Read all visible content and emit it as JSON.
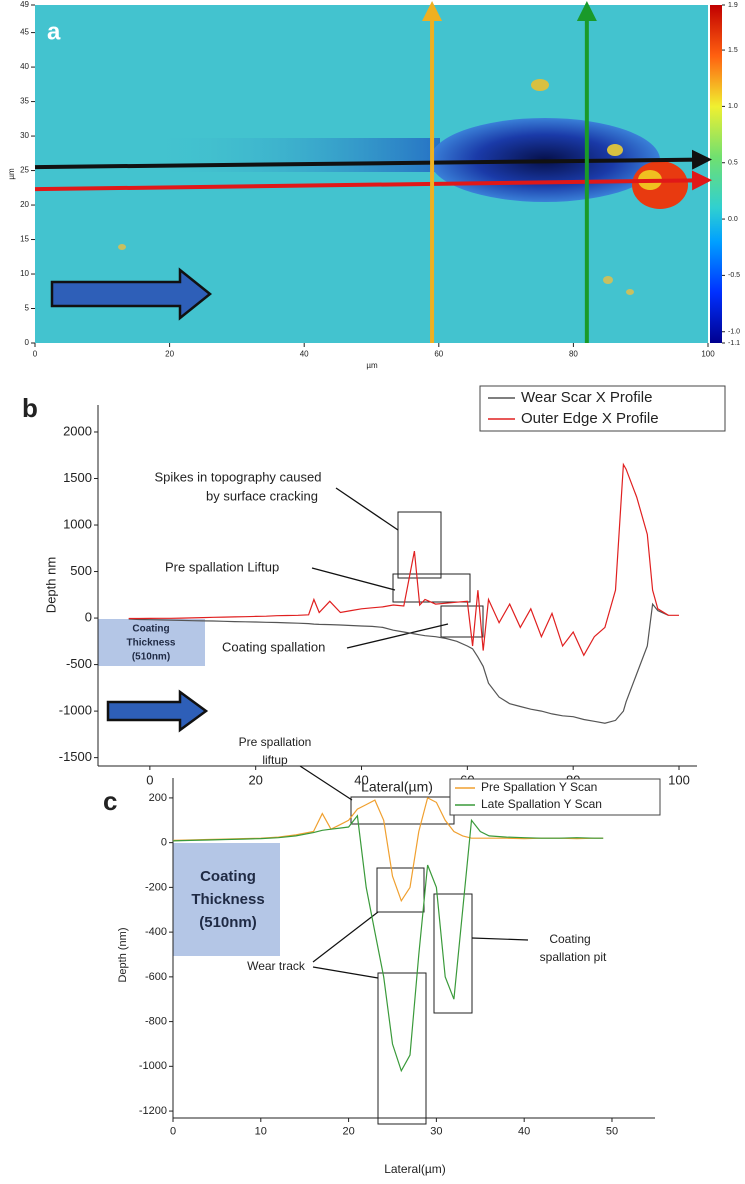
{
  "chart_data": [
    {
      "type": "heatmap",
      "label": "a",
      "xlabel": "µm",
      "ylabel": "µm",
      "xlim": [
        0,
        100
      ],
      "xticks": [
        0,
        20,
        40,
        60,
        80,
        100
      ],
      "ylim": [
        0,
        49
      ],
      "yticks": [
        0,
        5,
        10,
        15,
        20,
        25,
        30,
        35,
        40,
        45,
        49
      ],
      "colorbar": {
        "zlim": [
          -1.1,
          1.9
        ],
        "ticks": [
          1.9,
          1.5,
          {
            "value": 1,
            "label": "1.0"
          },
          0.5,
          {
            "value": 0,
            "label": "0.0"
          },
          -0.5,
          {
            "value": -1,
            "label": "-1.0"
          },
          -1.1
        ]
      },
      "arrows": [
        {
          "color": "#111111",
          "x": [
            0,
            100
          ],
          "y": [
            25.5,
            26.6
          ]
        },
        {
          "color": "#e01818",
          "x": [
            0,
            100
          ],
          "y": [
            22.3,
            23.6
          ]
        },
        {
          "color": "#f0b020",
          "x": [
            59,
            59
          ],
          "y": [
            0,
            49
          ]
        },
        {
          "color": "#1a9a2a",
          "x": [
            82,
            82
          ],
          "y": [
            0,
            49
          ]
        }
      ]
    },
    {
      "type": "line",
      "label": "b",
      "xlabel": "Lateral(µm)",
      "ylabel": "Depth nm",
      "xlim": [
        -9.8,
        103.4
      ],
      "xticks": [
        0,
        20,
        40,
        60,
        80,
        100
      ],
      "ylim": [
        -1590,
        2290
      ],
      "yticks": [
        -1500,
        -1000,
        -500,
        0,
        500,
        1000,
        1500,
        2000
      ],
      "x": [
        -4,
        -2,
        0,
        2,
        4,
        6,
        8,
        10,
        12,
        14,
        16,
        18,
        20,
        22,
        24,
        26,
        28,
        30,
        31,
        32,
        34,
        36,
        38,
        40,
        42,
        44,
        46,
        48,
        50,
        51,
        52,
        54,
        56,
        58,
        60,
        61,
        62,
        63,
        64,
        66,
        68,
        70,
        72,
        74,
        76,
        78,
        80,
        82,
        84,
        86,
        88,
        89.5,
        90,
        92,
        94,
        95,
        96,
        98,
        100
      ],
      "series": [
        {
          "name": "Wear Scar X Profile",
          "color": "#555555",
          "values": [
            -10,
            -15,
            -18,
            -20,
            -22,
            -25,
            -28,
            -30,
            -32,
            -35,
            -38,
            -40,
            -42,
            -45,
            -48,
            -52,
            -55,
            -60,
            -65,
            -68,
            -70,
            -75,
            -80,
            -85,
            -90,
            -100,
            -130,
            -150,
            -170,
            -180,
            -190,
            -200,
            -220,
            -250,
            -300,
            -330,
            -420,
            -520,
            -700,
            -850,
            -920,
            -950,
            -980,
            -1000,
            -1030,
            -1050,
            -1060,
            -1090,
            -1110,
            -1130,
            -1100,
            -1000,
            -900,
            -600,
            -300,
            150,
            80,
            30,
            null
          ]
        },
        {
          "name": "Outer Edge X Profile",
          "color": "#e02020",
          "values": [
            -5,
            -5,
            -4,
            -3,
            -2,
            0,
            2,
            5,
            8,
            10,
            12,
            15,
            18,
            20,
            25,
            28,
            30,
            35,
            200,
            60,
            180,
            60,
            80,
            100,
            110,
            120,
            140,
            130,
            720,
            140,
            200,
            150,
            160,
            170,
            180,
            -300,
            300,
            -350,
            200,
            -50,
            150,
            -100,
            100,
            -200,
            50,
            -300,
            -150,
            -400,
            -200,
            -100,
            300,
            1650,
            1600,
            1300,
            900,
            300,
            100,
            30,
            30
          ]
        }
      ],
      "legend": "upper right",
      "annotations": [
        {
          "lines": [
            "Spikes in topography caused",
            "by surface cracking"
          ]
        },
        {
          "lines": [
            "Pre spallation Liftup"
          ]
        },
        {
          "lines": [
            "Coating spallation"
          ]
        },
        {
          "lines": [
            "Coating",
            "Thickness",
            "(510nm)"
          ]
        }
      ]
    },
    {
      "type": "line",
      "label": "c",
      "xlabel": "Lateral(µm)",
      "ylabel": "Depth (nm)",
      "xlim": [
        0,
        54.9
      ],
      "xticks": [
        0,
        10,
        20,
        30,
        40,
        50
      ],
      "ylim": [
        -1231,
        289
      ],
      "yticks": [
        -1200,
        -1000,
        -800,
        -600,
        -400,
        -200,
        0,
        200
      ],
      "x": [
        0,
        2,
        4,
        6,
        8,
        10,
        12,
        14,
        16,
        17,
        18,
        19,
        20,
        21,
        22,
        23,
        24,
        25,
        26,
        27,
        28,
        29,
        30,
        31,
        32,
        33,
        34,
        35,
        36,
        38,
        40,
        42,
        44,
        46,
        48,
        49
      ],
      "series": [
        {
          "name": "Pre Spallation Y Scan",
          "color": "#f0a030",
          "values": [
            10,
            12,
            14,
            16,
            18,
            20,
            25,
            35,
            50,
            130,
            60,
            80,
            100,
            150,
            170,
            190,
            100,
            -150,
            -260,
            -200,
            50,
            200,
            180,
            100,
            50,
            30,
            20,
            20,
            20,
            20,
            18,
            20,
            20,
            18,
            20,
            20
          ]
        },
        {
          "name": "Late Spallation Y Scan",
          "color": "#3a9a3a",
          "values": [
            8,
            10,
            12,
            14,
            16,
            18,
            22,
            30,
            45,
            55,
            60,
            65,
            70,
            120,
            -200,
            -400,
            -600,
            -900,
            -1020,
            -950,
            -500,
            -100,
            -200,
            -600,
            -700,
            -300,
            100,
            50,
            30,
            25,
            22,
            20,
            20,
            22,
            20,
            20
          ]
        }
      ],
      "legend": "upper right",
      "annotations": [
        {
          "lines": [
            "Pre spallation",
            "liftup"
          ]
        },
        {
          "lines": [
            "Wear track"
          ]
        },
        {
          "lines": [
            "Coating",
            "spallation pit"
          ]
        },
        {
          "lines": [
            "Coating",
            "Thickness",
            "(510nm)"
          ]
        }
      ]
    }
  ]
}
